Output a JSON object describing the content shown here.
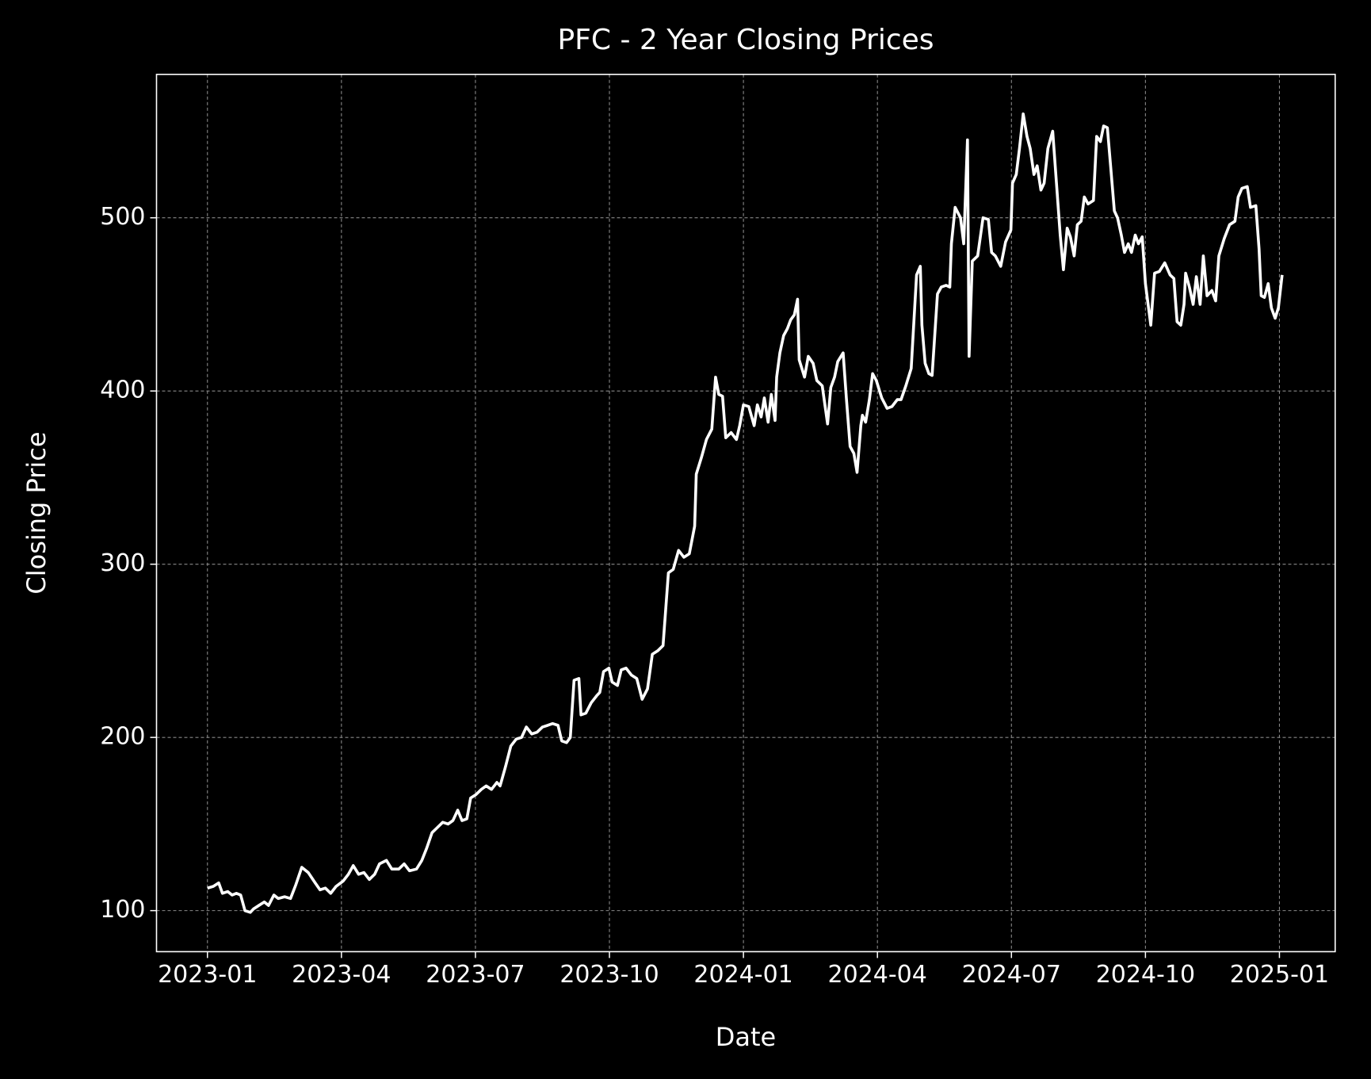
{
  "chart_data": {
    "type": "line",
    "title": "PFC - 2 Year Closing Prices",
    "x_label": "Date",
    "y_label": "Closing Price",
    "xlim": [
      2022.905,
      2025.104
    ],
    "ylim": [
      76.3,
      582.8
    ],
    "xticks": [
      {
        "value": 2023,
        "label": "2023-01"
      },
      {
        "value": 2023.25,
        "label": "2023-04"
      },
      {
        "value": 2023.5,
        "label": "2023-07"
      },
      {
        "value": 2023.75,
        "label": "2023-10"
      },
      {
        "value": 2024,
        "label": "2024-01"
      },
      {
        "value": 2024.25,
        "label": "2024-04"
      },
      {
        "value": 2024.5,
        "label": "2024-07"
      },
      {
        "value": 2024.75,
        "label": "2024-10"
      },
      {
        "value": 2025,
        "label": "2025-01"
      }
    ],
    "yticks": [
      100,
      200,
      300,
      400,
      500
    ],
    "grid": true,
    "series": [
      {
        "color": "#ffffff",
        "x": [
          2023,
          2023.011,
          2023.021,
          2023.028,
          2023.038,
          2023.046,
          2023.054,
          2023.062,
          2023.07,
          2023.08,
          2023.086,
          2023.096,
          2023.106,
          2023.114,
          2023.124,
          2023.132,
          2023.144,
          2023.155,
          2023.165,
          2023.176,
          2023.188,
          2023.201,
          2023.21,
          2023.22,
          2023.23,
          2023.24,
          2023.253,
          2023.263,
          2023.272,
          2023.282,
          2023.292,
          2023.302,
          2023.312,
          2023.321,
          2023.334,
          2023.344,
          2023.357,
          2023.367,
          2023.377,
          2023.39,
          2023.4,
          2023.409,
          2023.419,
          2023.429,
          2023.439,
          2023.449,
          2023.458,
          2023.467,
          2023.475,
          2023.484,
          2023.491,
          2023.501,
          2023.511,
          2023.52,
          2023.53,
          2023.54,
          2023.546,
          2023.556,
          2023.566,
          2023.576,
          2023.586,
          2023.595,
          2023.605,
          2023.615,
          2023.625,
          2023.635,
          2023.644,
          2023.654,
          2023.661,
          2023.67,
          2023.677,
          2023.684,
          2023.693,
          2023.697,
          2023.706,
          2023.716,
          2023.726,
          2023.732,
          2023.739,
          2023.749,
          2023.755,
          2023.765,
          2023.772,
          2023.781,
          2023.791,
          2023.801,
          2023.811,
          2023.821,
          2023.83,
          2023.84,
          2023.85,
          2023.86,
          2023.869,
          2023.879,
          2023.889,
          2023.899,
          2023.909,
          2023.912,
          2023.922,
          2023.931,
          2023.941,
          2023.948,
          2023.954,
          2023.961,
          2023.967,
          2023.977,
          2023.987,
          2023.993,
          2024.0,
          2024.01,
          2024.02,
          2024.026,
          2024.033,
          2024.039,
          2024.046,
          2024.052,
          2024.059,
          2024.062,
          2024.068,
          2024.075,
          2024.082,
          2024.088,
          2024.095,
          2024.101,
          2024.104,
          2024.114,
          2024.121,
          2024.13,
          2024.137,
          2024.147,
          2024.157,
          2024.163,
          2024.17,
          2024.176,
          2024.186,
          2024.192,
          2024.199,
          2024.206,
          2024.212,
          2024.219,
          2024.222,
          2024.228,
          2024.235,
          2024.241,
          2024.248,
          2024.258,
          2024.268,
          2024.277,
          2024.287,
          2024.294,
          2024.303,
          2024.313,
          2024.323,
          2024.33,
          2024.333,
          2024.339,
          2024.346,
          2024.352,
          2024.362,
          2024.369,
          2024.378,
          2024.385,
          2024.388,
          2024.395,
          2024.405,
          2024.411,
          2024.418,
          2024.421,
          2024.427,
          2024.437,
          2024.447,
          2024.457,
          2024.463,
          2024.47,
          2024.48,
          2024.489,
          2024.499,
          2024.502,
          2024.509,
          2024.515,
          2024.522,
          2024.529,
          2024.535,
          2024.542,
          2024.548,
          2024.555,
          2024.561,
          2024.568,
          2024.577,
          2024.584,
          2024.591,
          2024.597,
          2024.604,
          2024.61,
          2024.617,
          2024.623,
          2024.63,
          2024.636,
          2024.643,
          2024.653,
          2024.659,
          2024.666,
          2024.672,
          2024.679,
          2024.685,
          2024.692,
          2024.698,
          2024.705,
          2024.711,
          2024.718,
          2024.724,
          2024.731,
          2024.737,
          2024.744,
          2024.75,
          2024.76,
          2024.767,
          2024.776,
          2024.786,
          2024.796,
          2024.803,
          2024.809,
          2024.816,
          2024.822,
          2024.825,
          2024.832,
          2024.839,
          2024.845,
          2024.852,
          2024.858,
          2024.865,
          2024.874,
          2024.881,
          2024.887,
          2024.897,
          2024.907,
          2024.917,
          2024.923,
          2024.93,
          2024.94,
          2024.946,
          2024.956,
          2024.962,
          2024.966,
          2024.972,
          2024.979,
          2024.985,
          2024.992,
          2024.998,
          2025.005
        ],
        "values": [
          113,
          114,
          116,
          110,
          111,
          109,
          110,
          109,
          100,
          99,
          101,
          103,
          105,
          103,
          109,
          107,
          108,
          107,
          115,
          125,
          122,
          116,
          112,
          113,
          110,
          114,
          117,
          121,
          126,
          121,
          122,
          118,
          121,
          127,
          129,
          124,
          124,
          127,
          123,
          124,
          129,
          136,
          145,
          148,
          151,
          150,
          152,
          158,
          152,
          153,
          165,
          167,
          170,
          172,
          170,
          174,
          172,
          183,
          195,
          199,
          200,
          206,
          202,
          203,
          206,
          207,
          208,
          207,
          198,
          197,
          200,
          233,
          234,
          213,
          214,
          220,
          224,
          226,
          238,
          240,
          232,
          230,
          239,
          240,
          236,
          234,
          222,
          228,
          248,
          250,
          253,
          295,
          297,
          308,
          304,
          306,
          322,
          352,
          362,
          372,
          378,
          408,
          398,
          397,
          373,
          376,
          372,
          380,
          392,
          391,
          380,
          392,
          385,
          396,
          382,
          398,
          383,
          408,
          422,
          432,
          436,
          441,
          444,
          453,
          418,
          408,
          420,
          416,
          406,
          403,
          381,
          402,
          408,
          417,
          422,
          396,
          368,
          364,
          353,
          380,
          386,
          382,
          395,
          410,
          406,
          396,
          390,
          391,
          395,
          395,
          403,
          413,
          467,
          472,
          438,
          416,
          410,
          409,
          456,
          460,
          461,
          460,
          485,
          506,
          500,
          485,
          545,
          420,
          475,
          478,
          500,
          499,
          480,
          478,
          472,
          486,
          493,
          520,
          525,
          540,
          560,
          547,
          540,
          525,
          530,
          516,
          520,
          540,
          550,
          520,
          490,
          470,
          494,
          489,
          478,
          496,
          498,
          512,
          508,
          510,
          547,
          544,
          553,
          552,
          530,
          504,
          500,
          490,
          480,
          485,
          480,
          490,
          485,
          489,
          462,
          438,
          468,
          469,
          474,
          467,
          465,
          440,
          438,
          450,
          468,
          460,
          450,
          466,
          450,
          478,
          455,
          458,
          452,
          478,
          488,
          496,
          498,
          512,
          517,
          518,
          506,
          507,
          482,
          455,
          454,
          462,
          448,
          442,
          448,
          467
        ]
      }
    ]
  }
}
